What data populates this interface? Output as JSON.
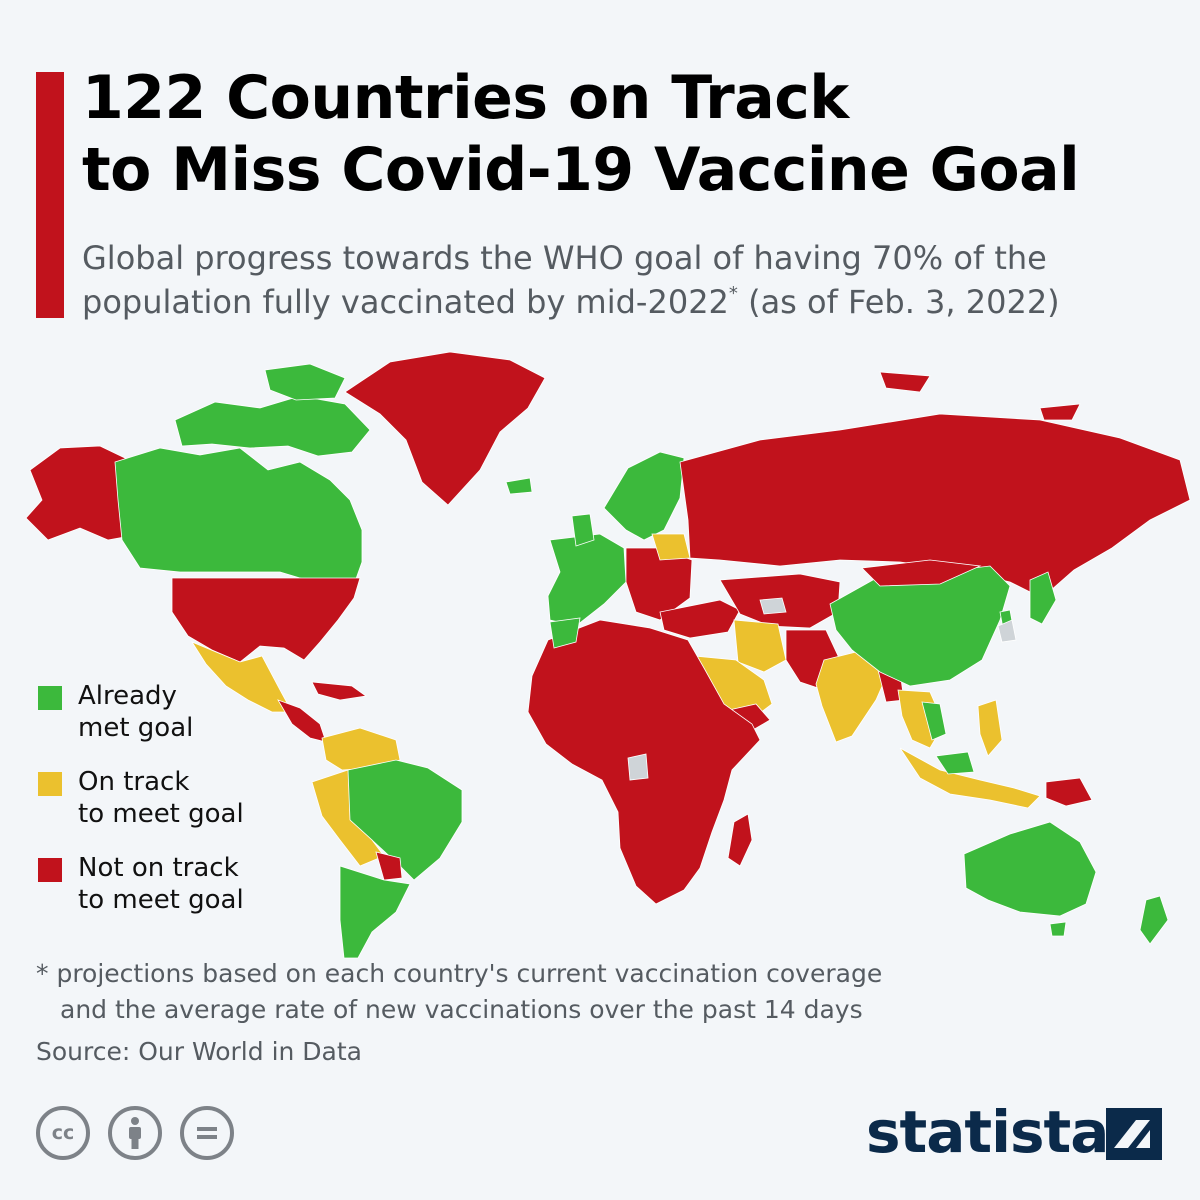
{
  "header": {
    "title_line1": "122 Countries on Track",
    "title_line2": "to Miss Covid-19 Vaccine Goal",
    "subtitle_line1": "Global progress towards the WHO goal of having 70% of the",
    "subtitle_line2_pre": "population fully vaccinated by mid-2022",
    "subtitle_asterisk": "*",
    "subtitle_line2_post": " (as of Feb. 3, 2022)"
  },
  "colors": {
    "accent": "#c1121c",
    "met": "#3cb93c",
    "on_track": "#ebc12e",
    "not_on_track": "#c1121c",
    "no_data": "#cfd4d8",
    "ocean": "#f3f6f9"
  },
  "legend": [
    {
      "key": "met",
      "line1": "Already",
      "line2": "met goal"
    },
    {
      "key": "on_track",
      "line1": "On track",
      "line2": "to meet goal"
    },
    {
      "key": "not_on_track",
      "line1": "Not on track",
      "line2": "to meet goal"
    }
  ],
  "footer": {
    "footnote_line1": "* projections based on each country's current vaccination coverage",
    "footnote_line2": "and the average rate of new vaccinations over the past 14 days",
    "source": "Source: Our World in Data",
    "license_icons": [
      "cc-icon",
      "attribution-icon",
      "no-derivatives-icon"
    ],
    "cc_label": "cc",
    "brand": "statista"
  }
}
